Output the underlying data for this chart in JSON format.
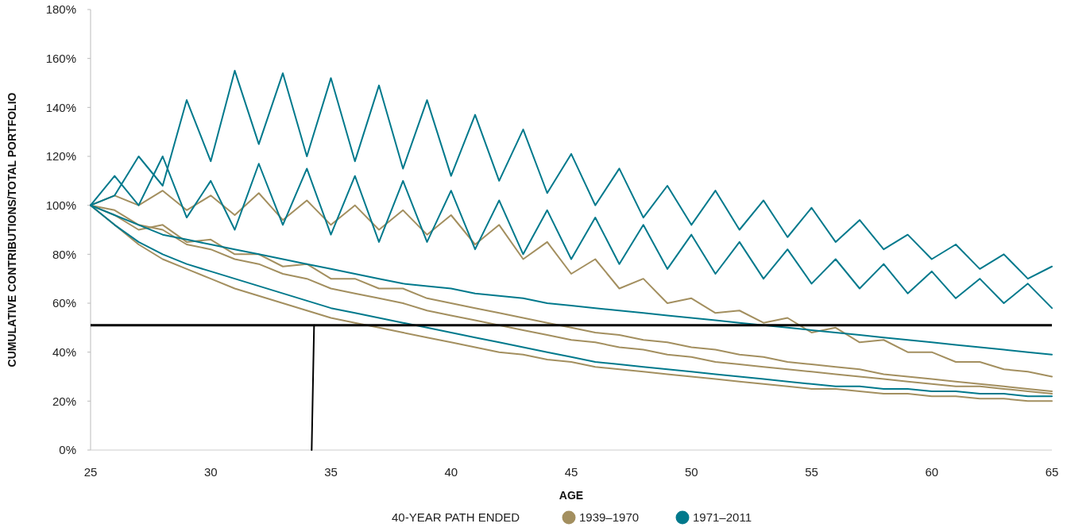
{
  "chart_data": {
    "type": "line",
    "xlabel": "AGE",
    "ylabel": "CUMULATIVE CONTRIBUTIONS/TOTAL PORTFOLIO",
    "legend_title": "40-YEAR PATH ENDED",
    "legend": "bottom",
    "grid": false,
    "marker": "none",
    "line_style": "solid",
    "x": [
      25,
      26,
      27,
      28,
      29,
      30,
      31,
      32,
      33,
      34,
      35,
      36,
      37,
      38,
      39,
      40,
      41,
      42,
      43,
      44,
      45,
      46,
      47,
      48,
      49,
      50,
      51,
      52,
      53,
      54,
      55,
      56,
      57,
      58,
      59,
      60,
      61,
      62,
      63,
      64,
      65
    ],
    "xlim": [
      25,
      65
    ],
    "xticks": [
      25,
      30,
      35,
      40,
      45,
      50,
      55,
      60,
      65
    ],
    "ylim": [
      0,
      180
    ],
    "yticks": [
      {
        "value": 0,
        "label": "0%"
      },
      {
        "value": 20,
        "label": "20%"
      },
      {
        "value": 40,
        "label": "40%"
      },
      {
        "value": 60,
        "label": "60%"
      },
      {
        "value": 80,
        "label": "80%"
      },
      {
        "value": 100,
        "label": "100%"
      },
      {
        "value": 120,
        "label": "120%"
      },
      {
        "value": 140,
        "label": "140%"
      },
      {
        "value": 160,
        "label": "160%"
      },
      {
        "value": 180,
        "label": "180%"
      }
    ],
    "ref_lines": [
      {
        "axis": "y",
        "value": 51,
        "color": "#000000"
      }
    ],
    "series": [
      {
        "name": "1939–1970",
        "color": "#a38f5f",
        "values": [
          100,
          104,
          100,
          106,
          98,
          104,
          96,
          105,
          94,
          102,
          92,
          100,
          90,
          98,
          88,
          96,
          84,
          92,
          78,
          85,
          72,
          78,
          66,
          70,
          60,
          62,
          56,
          57,
          52,
          54,
          48,
          50,
          44,
          45,
          40,
          40,
          36,
          36,
          33,
          32,
          30
        ]
      },
      {
        "color": "#a38f5f",
        "values": [
          100,
          96,
          90,
          92,
          85,
          86,
          80,
          80,
          75,
          76,
          70,
          70,
          66,
          66,
          62,
          60,
          58,
          56,
          54,
          52,
          50,
          48,
          47,
          45,
          44,
          42,
          41,
          39,
          38,
          36,
          35,
          34,
          33,
          31,
          30,
          29,
          28,
          27,
          26,
          25,
          24
        ]
      },
      {
        "color": "#a38f5f",
        "values": [
          100,
          92,
          84,
          78,
          74,
          70,
          66,
          63,
          60,
          57,
          54,
          52,
          50,
          48,
          46,
          44,
          42,
          40,
          39,
          37,
          36,
          34,
          33,
          32,
          31,
          30,
          29,
          28,
          27,
          26,
          25,
          25,
          24,
          23,
          23,
          22,
          22,
          21,
          21,
          20,
          20
        ]
      },
      {
        "color": "#a38f5f",
        "values": [
          100,
          98,
          92,
          90,
          84,
          82,
          78,
          76,
          72,
          70,
          66,
          64,
          62,
          60,
          57,
          55,
          53,
          51,
          49,
          47,
          45,
          44,
          42,
          41,
          39,
          38,
          36,
          35,
          34,
          33,
          32,
          31,
          30,
          29,
          28,
          27,
          26,
          26,
          25,
          24,
          23
        ]
      },
      {
        "name": "1971–2011",
        "color": "#00798c",
        "values": [
          100,
          104,
          120,
          108,
          143,
          118,
          155,
          125,
          154,
          120,
          152,
          118,
          149,
          115,
          143,
          112,
          137,
          110,
          131,
          105,
          121,
          100,
          115,
          95,
          108,
          92,
          106,
          90,
          102,
          87,
          99,
          85,
          94,
          82,
          88,
          78,
          84,
          74,
          80,
          70,
          75
        ]
      },
      {
        "color": "#00798c",
        "values": [
          100,
          112,
          100,
          120,
          95,
          110,
          90,
          117,
          92,
          115,
          88,
          112,
          85,
          110,
          85,
          106,
          82,
          102,
          80,
          98,
          78,
          95,
          76,
          92,
          74,
          88,
          72,
          85,
          70,
          82,
          68,
          78,
          66,
          76,
          64,
          73,
          62,
          70,
          60,
          68,
          58
        ]
      },
      {
        "color": "#00798c",
        "values": [
          100,
          96,
          92,
          88,
          86,
          84,
          82,
          80,
          78,
          76,
          74,
          72,
          70,
          68,
          67,
          66,
          64,
          63,
          62,
          60,
          59,
          58,
          57,
          56,
          55,
          54,
          53,
          52,
          51,
          50,
          49,
          48,
          47,
          46,
          45,
          44,
          43,
          42,
          41,
          40,
          39
        ]
      },
      {
        "color": "#00798c",
        "values": [
          100,
          92,
          85,
          80,
          76,
          73,
          70,
          67,
          64,
          61,
          58,
          56,
          54,
          52,
          50,
          48,
          46,
          44,
          42,
          40,
          38,
          36,
          35,
          34,
          33,
          32,
          31,
          30,
          29,
          28,
          27,
          26,
          26,
          25,
          25,
          24,
          24,
          23,
          23,
          22,
          22
        ]
      },
      {
        "type": "line",
        "color": "#000000",
        "x": [
          34.2,
          34.3
        ],
        "values": [
          0,
          51
        ]
      }
    ]
  }
}
